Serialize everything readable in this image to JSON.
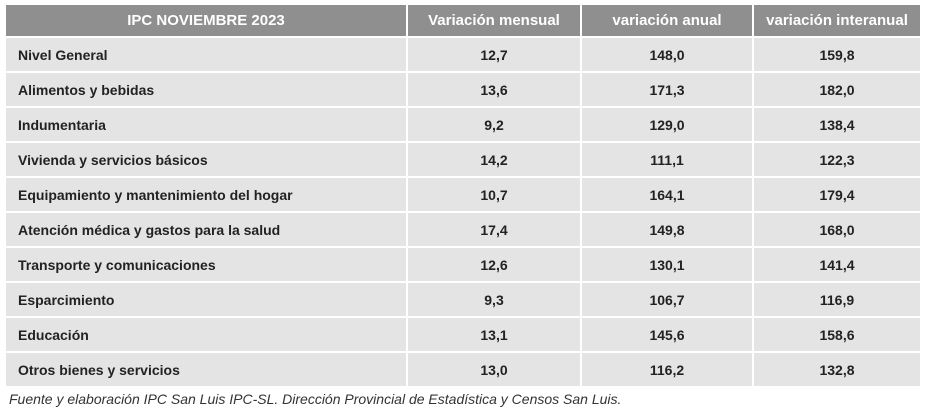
{
  "table": {
    "header": [
      "IPC NOVIEMBRE 2023",
      "Variación mensual",
      "variación anual",
      "variación interanual"
    ],
    "rows": [
      [
        "Nivel General",
        "12,7",
        "148,0",
        "159,8"
      ],
      [
        "Alimentos y bebidas",
        "13,6",
        "171,3",
        "182,0"
      ],
      [
        "Indumentaria",
        "9,2",
        "129,0",
        "138,4"
      ],
      [
        "Vivienda y servicios básicos",
        "14,2",
        "111,1",
        "122,3"
      ],
      [
        "Equipamiento y mantenimiento del hogar",
        "10,7",
        "164,1",
        "179,4"
      ],
      [
        "Atención médica y gastos para la salud",
        "17,4",
        "149,8",
        "168,0"
      ],
      [
        "Transporte y comunicaciones",
        "12,6",
        "130,1",
        "141,4"
      ],
      [
        "Esparcimiento",
        "9,3",
        "106,7",
        "116,9"
      ],
      [
        "Educación",
        "13,1",
        "145,6",
        "158,6"
      ],
      [
        "Otros bienes y servicios",
        "13,0",
        "116,2",
        "132,8"
      ]
    ]
  },
  "footer": "Fuente y elaboración IPC San Luis IPC-SL. Dirección Provincial de Estadística y Censos San Luis."
}
